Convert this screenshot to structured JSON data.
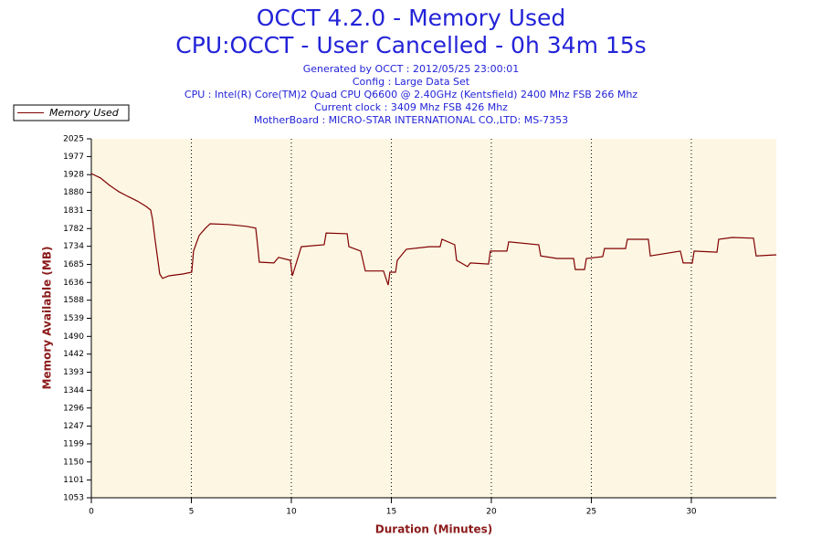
{
  "chart_data": {
    "type": "line",
    "title": "OCCT 4.2.0 - Memory Used",
    "subtitle": "CPU:OCCT - User Cancelled - 0h 34m 15s",
    "info": [
      "Generated by OCCT : 2012/05/25 23:00:01",
      "Config : Large Data Set",
      "CPU : Intel(R) Core(TM)2 Quad CPU Q6600 @ 2.40GHz (Kentsfield) 2400 Mhz FSB 266 Mhz",
      "Current clock : 3409 Mhz FSB 426 Mhz",
      "MotherBoard : MICRO-STAR INTERNATIONAL CO.,LTD: MS-7353"
    ],
    "x_label": "Duration (Minutes)",
    "y_label": "Memory Available (MB)",
    "x": [
      0,
      0.46,
      0.91,
      1.37,
      1.83,
      2.28,
      2.74,
      2.97,
      3.06,
      3.11,
      3.2,
      3.42,
      3.56,
      3.88,
      4.57,
      5.02,
      5.11,
      5.39,
      5.71,
      5.94,
      6.85,
      7.76,
      8.22,
      8.31,
      8.4,
      9.13,
      9.36,
      9.95,
      10.05,
      10.5,
      11.64,
      11.74,
      12.79,
      12.88,
      13.47,
      13.7,
      14.61,
      14.84,
      14.93,
      15.21,
      15.3,
      15.75,
      16.89,
      17.44,
      17.53,
      18.17,
      18.26,
      18.81,
      18.95,
      19.86,
      19.95,
      20.78,
      20.87,
      22.37,
      22.47,
      23.29,
      24.11,
      24.2,
      24.66,
      24.75,
      25.57,
      25.66,
      26.71,
      26.8,
      27.85,
      27.95,
      29.45,
      29.59,
      30.05,
      30.14,
      31.28,
      31.37,
      32.05,
      33.11,
      33.24,
      34.25
    ],
    "series": [
      {
        "name": "Memory Used",
        "color": "#800000",
        "values": [
          1931,
          1919,
          1899,
          1882,
          1869,
          1857,
          1842,
          1832,
          1807,
          1785,
          1746,
          1659,
          1647,
          1654,
          1659,
          1664,
          1721,
          1763,
          1783,
          1795,
          1793,
          1788,
          1783,
          1738,
          1691,
          1689,
          1704,
          1696,
          1654,
          1733,
          1738,
          1770,
          1768,
          1733,
          1721,
          1667,
          1667,
          1629,
          1664,
          1664,
          1696,
          1726,
          1733,
          1733,
          1753,
          1738,
          1696,
          1679,
          1689,
          1686,
          1721,
          1721,
          1746,
          1738,
          1708,
          1701,
          1701,
          1671,
          1671,
          1701,
          1706,
          1728,
          1728,
          1753,
          1753,
          1708,
          1721,
          1689,
          1689,
          1721,
          1718,
          1753,
          1758,
          1756,
          1708,
          1711
        ]
      }
    ],
    "xlim": [
      0,
      34.25
    ],
    "ylim": [
      1053,
      2025
    ],
    "xticks": [
      0,
      5,
      10,
      15,
      20,
      25,
      30
    ],
    "yticks": [
      1053,
      1101,
      1150,
      1199,
      1247,
      1296,
      1344,
      1393,
      1442,
      1490,
      1539,
      1588,
      1636,
      1685,
      1734,
      1782,
      1831,
      1880,
      1928,
      1977,
      2025
    ],
    "grid": true,
    "legend": "top-left",
    "background": "#fdf6e3"
  }
}
